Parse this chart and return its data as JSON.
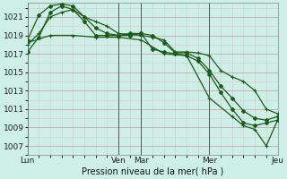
{
  "title": "Pression niveau de la mer( hPa )",
  "bg_color": "#ceeee8",
  "grid_color_major": "#c8a8a8",
  "grid_color_minor": "#ddc8c8",
  "line_color": "#1a5c1a",
  "ylim": [
    1006.0,
    1022.5
  ],
  "yticks": [
    1007,
    1009,
    1011,
    1013,
    1015,
    1017,
    1019,
    1021
  ],
  "xtick_labels": [
    "Lun",
    "",
    "Ven",
    "Mar",
    "",
    "Mer",
    "",
    "Jeu"
  ],
  "xtick_positions": [
    0,
    4,
    8,
    10,
    13,
    16,
    19,
    22
  ],
  "day_lines": [
    0,
    8,
    10,
    16,
    22
  ],
  "num_points": 23,
  "series1_x": [
    0,
    1,
    2,
    3,
    4,
    5,
    6,
    7,
    8,
    9,
    10,
    11,
    12,
    13,
    14,
    15,
    16,
    17,
    18,
    19,
    20,
    21,
    22
  ],
  "series1_y": [
    1018.0,
    1019.2,
    1021.0,
    1021.5,
    1021.8,
    1021.0,
    1020.5,
    1020.0,
    1019.2,
    1019.1,
    1019.0,
    1018.8,
    1018.5,
    1017.2,
    1017.2,
    1017.1,
    1016.8,
    1015.2,
    1014.5,
    1014.0,
    1013.0,
    1011.0,
    1010.5
  ],
  "series2_x": [
    0,
    1,
    2,
    3,
    4,
    5,
    6,
    7,
    8,
    9,
    10,
    11,
    12,
    13,
    14,
    15,
    16,
    17,
    18,
    19,
    20,
    21,
    22
  ],
  "series2_y": [
    1018.5,
    1021.2,
    1022.2,
    1022.4,
    1022.2,
    1021.0,
    1019.8,
    1019.2,
    1019.0,
    1019.0,
    1019.2,
    1019.0,
    1018.2,
    1017.1,
    1017.1,
    1016.5,
    1015.2,
    1013.5,
    1012.2,
    1010.8,
    1010.0,
    1009.8,
    1010.2
  ],
  "series3_x": [
    0,
    1,
    2,
    3,
    4,
    5,
    6,
    7,
    8,
    9,
    10,
    11,
    12,
    13,
    14,
    15,
    16,
    17,
    18,
    19,
    20,
    21,
    22
  ],
  "series3_y": [
    1017.2,
    1018.8,
    1021.5,
    1022.2,
    1021.8,
    1020.5,
    1019.0,
    1019.0,
    1019.0,
    1019.2,
    1019.2,
    1017.5,
    1017.2,
    1017.0,
    1016.8,
    1016.2,
    1014.8,
    1012.8,
    1011.0,
    1009.5,
    1009.2,
    1009.5,
    1009.8
  ],
  "series4_x": [
    0,
    2,
    4,
    6,
    8,
    10,
    12,
    14,
    16,
    18,
    19,
    20,
    21,
    22
  ],
  "series4_y": [
    1018.2,
    1019.0,
    1019.0,
    1018.8,
    1018.8,
    1018.5,
    1017.0,
    1016.8,
    1012.2,
    1010.2,
    1009.2,
    1008.8,
    1007.0,
    1009.8
  ]
}
